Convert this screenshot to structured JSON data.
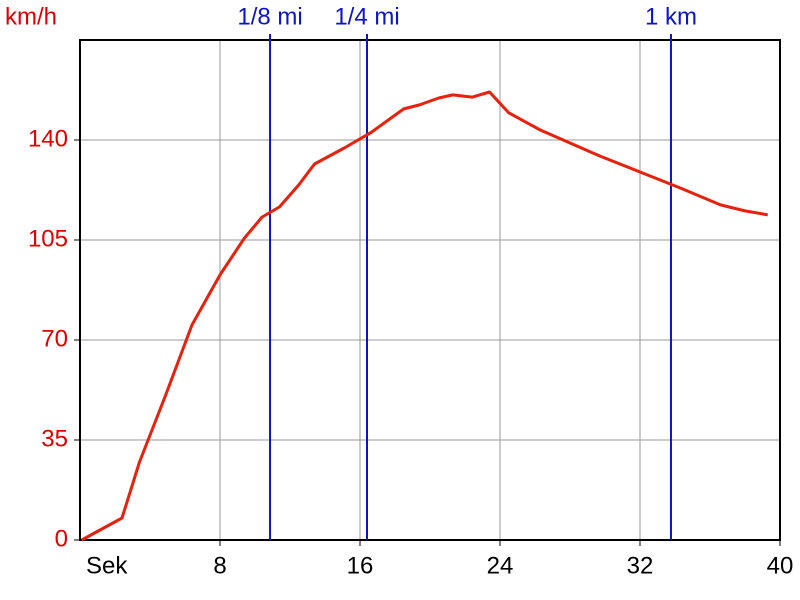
{
  "chart_data": {
    "type": "line",
    "y_label": "km/h",
    "x_label": "Sek",
    "x": [
      0.1,
      2.4,
      3.4,
      4.9,
      6.4,
      8,
      9.4,
      10.4,
      11.4,
      12.5,
      13.4,
      15.1,
      16.6,
      18.5,
      19.4,
      20.5,
      21.3,
      22.4,
      23.4,
      24.5,
      26.3,
      29.7,
      32,
      34.3,
      36.6,
      38,
      39.3
    ],
    "series": [
      {
        "name": "km/h",
        "color": "#e8200c",
        "values": [
          0,
          7.7,
          27.3,
          50.8,
          75.3,
          92.8,
          105.7,
          113,
          116.6,
          124.3,
          131.6,
          137.2,
          142.5,
          150.9,
          152.3,
          154.7,
          155.8,
          155,
          156.8,
          149.5,
          143.5,
          134.4,
          128.8,
          123.2,
          117.3,
          115.2,
          113.8
        ]
      }
    ],
    "xlim": [
      0,
      40
    ],
    "xticks": [
      8,
      16,
      24,
      32,
      40
    ],
    "ylim": [
      0,
      175
    ],
    "yticks": [
      0,
      35,
      70,
      105,
      140
    ],
    "grid": true,
    "markers": [
      {
        "label": "1/8 mi",
        "x": 10.86,
        "color": "#0a14c8"
      },
      {
        "label": "1/4 mi",
        "x": 16.4,
        "color": "#0a14c8"
      },
      {
        "label": "1 km",
        "x": 33.77,
        "color": "#0a14c8"
      }
    ]
  }
}
